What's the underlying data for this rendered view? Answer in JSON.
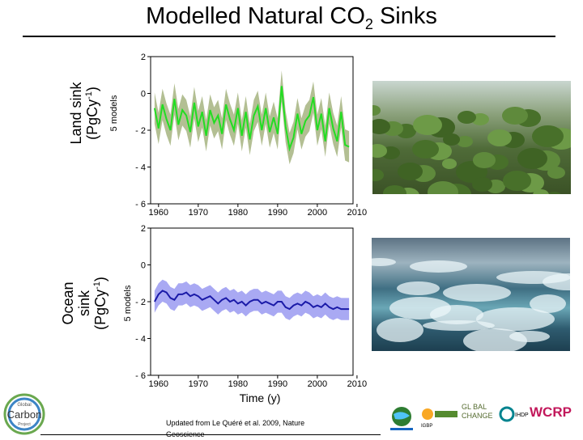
{
  "title": {
    "main": "Modelled Natural CO",
    "sub": "2",
    "tail": " Sinks"
  },
  "chart_data": [
    {
      "type": "line",
      "panel": "land",
      "ylabel_line1": "Land sink",
      "ylabel_line2": "(PgCy",
      "ylabel_sup": "-1",
      "ylabel_close": ")",
      "band_label": "5 models",
      "xlim": [
        1958,
        2009
      ],
      "ylim": [
        -6,
        2
      ],
      "yticks": [
        2,
        0,
        -2,
        -4,
        -6
      ],
      "ytick_labels": [
        "2",
        "0",
        "- 2",
        "- 4",
        "- 6"
      ],
      "xticks": [
        1960,
        1970,
        1980,
        1990,
        2000,
        2010
      ],
      "xtick_labels": [
        "1960",
        "1970",
        "1980",
        "1990",
        "2000",
        "2010"
      ],
      "grid": false,
      "line_color": "#22dd22",
      "band_color": "#b3bf93",
      "series": [
        {
          "x": [
            1959,
            1960,
            1961,
            1962,
            1963,
            1964,
            1965,
            1966,
            1967,
            1968,
            1969,
            1970,
            1971,
            1972,
            1973,
            1974,
            1975,
            1976,
            1977,
            1978,
            1979,
            1980,
            1981,
            1982,
            1983,
            1984,
            1985,
            1986,
            1987,
            1988,
            1989,
            1990,
            1991,
            1992,
            1993,
            1994,
            1995,
            1996,
            1997,
            1998,
            1999,
            2000,
            2001,
            2002,
            2003,
            2004,
            2005,
            2006,
            2007,
            2008
          ],
          "values": [
            -0.8,
            -1.9,
            -0.6,
            -1.4,
            -2.0,
            -0.3,
            -1.7,
            -0.9,
            -1.2,
            -2.1,
            -0.5,
            -1.8,
            -1.0,
            -2.3,
            -0.9,
            -1.6,
            -1.2,
            -2.2,
            -0.6,
            -1.4,
            -2.0,
            -0.8,
            -2.3,
            -1.0,
            -2.5,
            -1.2,
            -0.7,
            -2.0,
            -0.8,
            -2.1,
            -1.3,
            -2.2,
            0.4,
            -1.8,
            -3.0,
            -2.4,
            -1.1,
            -2.2,
            -1.5,
            -1.2,
            -0.2,
            -2.0,
            -1.1,
            -2.6,
            -0.8,
            -1.9,
            -2.6,
            -1.0,
            -2.8,
            -2.9
          ],
          "band_half_width": 0.85
        }
      ]
    },
    {
      "type": "line",
      "panel": "ocean",
      "ylabel_line1": "Ocean",
      "ylabel_line2": "sink",
      "ylabel_line3": "(PgCy",
      "ylabel_sup": "-1",
      "ylabel_close": ")",
      "band_label": "5 models",
      "xlim": [
        1958,
        2009
      ],
      "ylim": [
        -6,
        2
      ],
      "yticks": [
        2,
        0,
        -2,
        -4,
        -6
      ],
      "ytick_labels": [
        "2",
        "0",
        "- 2",
        "- 4",
        "- 6"
      ],
      "xticks": [
        1960,
        1970,
        1980,
        1990,
        2000,
        2010
      ],
      "xtick_labels": [
        "1960",
        "1970",
        "1980",
        "1990",
        "2000",
        "2010"
      ],
      "xlabel": "Time (y)",
      "grid": false,
      "line_color": "#1a1aa8",
      "band_color": "#a9a9f3",
      "series": [
        {
          "x": [
            1959,
            1960,
            1961,
            1962,
            1963,
            1964,
            1965,
            1966,
            1967,
            1968,
            1969,
            1970,
            1971,
            1972,
            1973,
            1974,
            1975,
            1976,
            1977,
            1978,
            1979,
            1980,
            1981,
            1982,
            1983,
            1984,
            1985,
            1986,
            1987,
            1988,
            1989,
            1990,
            1991,
            1992,
            1993,
            1994,
            1995,
            1996,
            1997,
            1998,
            1999,
            2000,
            2001,
            2002,
            2003,
            2004,
            2005,
            2006,
            2007,
            2008
          ],
          "values": [
            -2.0,
            -1.6,
            -1.4,
            -1.5,
            -1.8,
            -1.9,
            -1.6,
            -1.6,
            -1.5,
            -1.7,
            -1.6,
            -1.7,
            -1.9,
            -1.8,
            -1.7,
            -1.9,
            -2.1,
            -1.9,
            -1.8,
            -2.0,
            -1.9,
            -2.1,
            -2.0,
            -2.2,
            -2.0,
            -1.9,
            -1.9,
            -2.1,
            -2.0,
            -2.1,
            -2.2,
            -2.0,
            -2.0,
            -2.3,
            -2.4,
            -2.2,
            -2.1,
            -2.2,
            -2.0,
            -2.1,
            -2.3,
            -2.2,
            -2.3,
            -2.1,
            -2.3,
            -2.4,
            -2.3,
            -2.4,
            -2.4,
            -2.4
          ],
          "band_half_width": 0.6
        }
      ]
    }
  ],
  "credit": "Updated from Le Quéré et al. 2009, Nature Geoscience",
  "logos": {
    "gcp_top": "Global",
    "gcp_main": "Carbon",
    "gcp_bottom": "Project",
    "igbp": "IGBP",
    "wcrp": "WCRP",
    "global_change": "GL BAL CHANGE",
    "ihdp": "IHDP"
  }
}
